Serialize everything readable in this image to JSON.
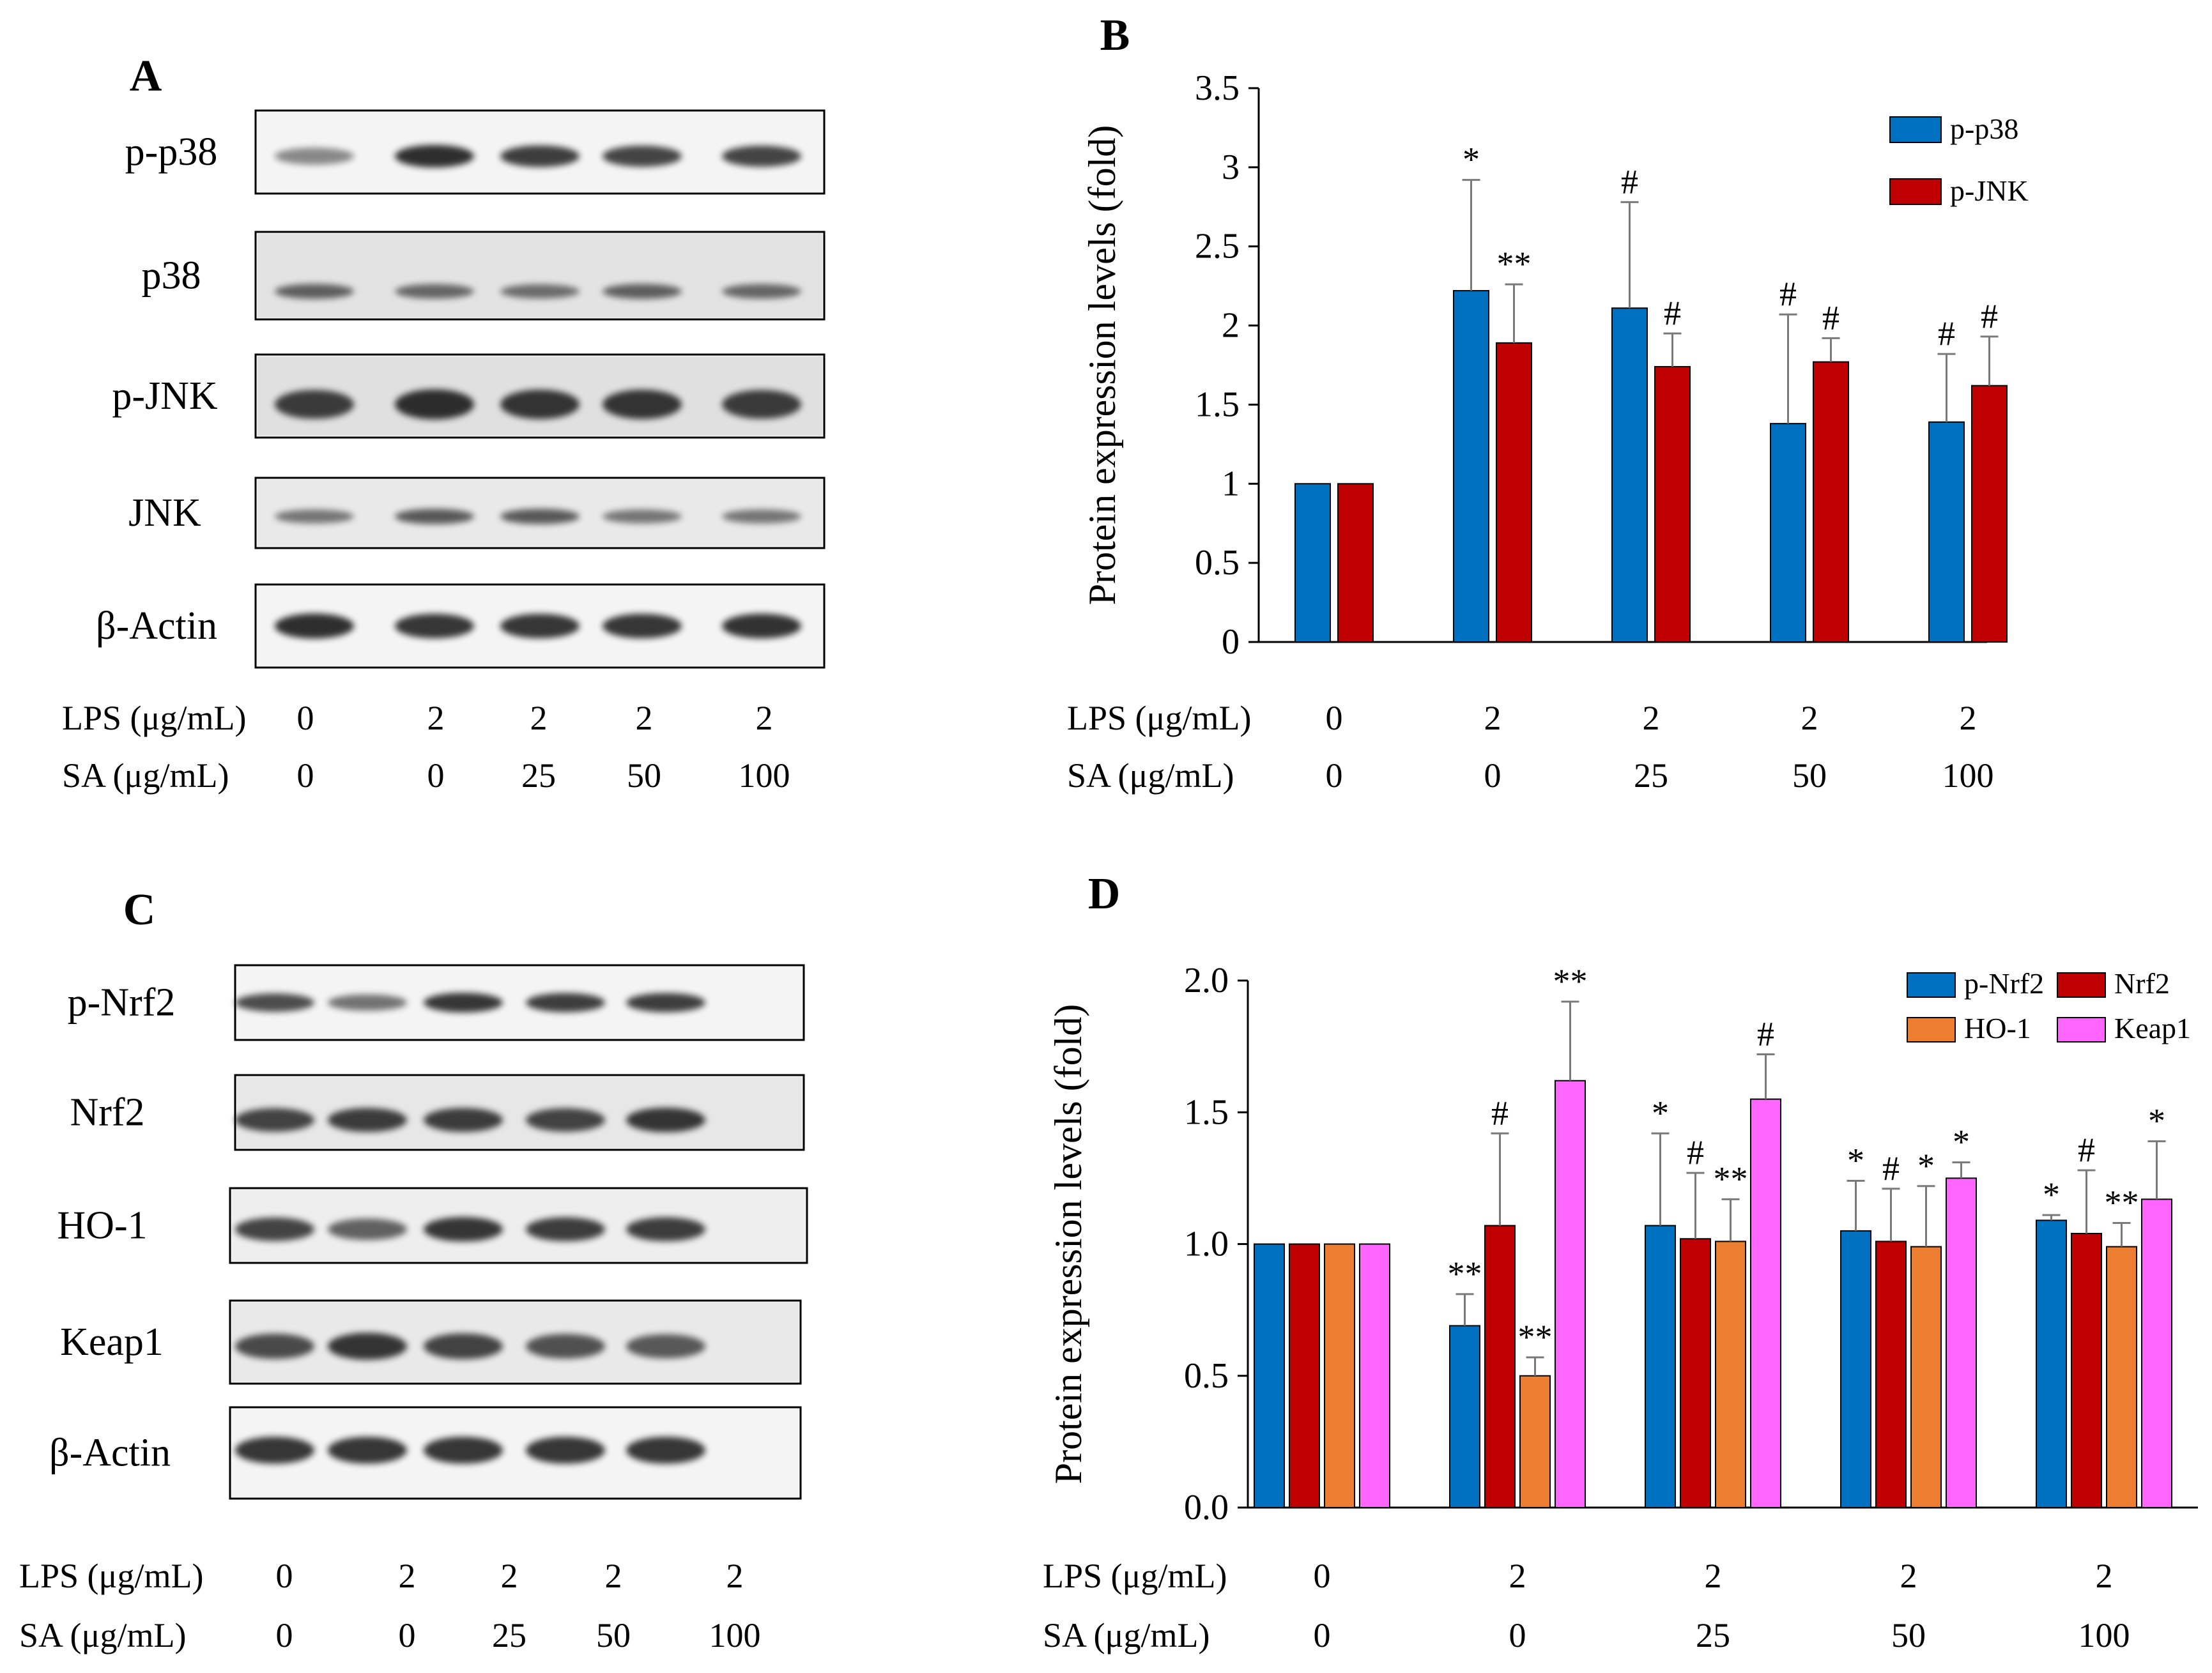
{
  "colors": {
    "blue": "#0070C0",
    "red": "#C00000",
    "orange": "#ED7D31",
    "pink": "#FF66FF",
    "axis": "#000000",
    "blot_band": "#1c1c1c",
    "blot_bg": "#f4f4f4",
    "error_bar": "#7a7a7a"
  },
  "panels": {
    "A": {
      "label": "A",
      "blot_rows": [
        "p-p38",
        "p38",
        "p-JNK",
        "JNK",
        "β-Actin"
      ],
      "lps_label": "LPS (μg/mL)",
      "sa_label": "SA (μg/mL)",
      "lps_values": [
        "0",
        "2",
        "2",
        "2",
        "2"
      ],
      "sa_values": [
        "0",
        "0",
        "25",
        "50",
        "100"
      ]
    },
    "C": {
      "label": "C",
      "blot_rows": [
        "p-Nrf2",
        "Nrf2",
        "HO-1",
        "Keap1",
        "β-Actin"
      ],
      "lps_label": "LPS (μg/mL)",
      "sa_label": "SA (μg/mL)",
      "lps_values": [
        "0",
        "2",
        "2",
        "2",
        "2"
      ],
      "sa_values": [
        "0",
        "0",
        "25",
        "50",
        "100"
      ]
    }
  },
  "chart_data": [
    {
      "panel": "B",
      "type": "bar",
      "ylabel": "Protein expression levels (fold)",
      "ylim": [
        0,
        3.5
      ],
      "yticks": [
        "0",
        "0.5",
        "1",
        "1.5",
        "2",
        "2.5",
        "3",
        "3.5"
      ],
      "legend_position": "top-right",
      "lps_label": "LPS (μg/mL)",
      "sa_label": "SA (μg/mL)",
      "categories_lps": [
        "0",
        "2",
        "2",
        "2",
        "2"
      ],
      "categories_sa": [
        "0",
        "0",
        "25",
        "50",
        "100"
      ],
      "series": [
        {
          "name": "p-p38",
          "color": "#0070C0",
          "values": [
            1.0,
            2.22,
            2.11,
            1.38,
            1.39
          ],
          "errors": [
            0,
            0.7,
            0.67,
            0.69,
            0.43
          ],
          "marks": [
            "",
            "*",
            "#",
            "#",
            "#"
          ]
        },
        {
          "name": "p-JNK",
          "color": "#C00000",
          "values": [
            1.0,
            1.89,
            1.74,
            1.77,
            1.62
          ],
          "errors": [
            0,
            0.37,
            0.21,
            0.15,
            0.31
          ],
          "marks": [
            "",
            "**",
            "#",
            "#",
            "#"
          ]
        }
      ]
    },
    {
      "panel": "D",
      "type": "bar",
      "ylabel": "Protein expression levels (fold)",
      "ylim": [
        0,
        2.0
      ],
      "yticks": [
        "0.0",
        "0.5",
        "1.0",
        "1.5",
        "2.0"
      ],
      "legend_position": "top-right",
      "lps_label": "LPS (μg/mL)",
      "sa_label": "SA (μg/mL)",
      "categories_lps": [
        "0",
        "2",
        "2",
        "2",
        "2"
      ],
      "categories_sa": [
        "0",
        "0",
        "25",
        "50",
        "100"
      ],
      "series": [
        {
          "name": "p-Nrf2",
          "color": "#0070C0",
          "values": [
            1.0,
            0.69,
            1.07,
            1.05,
            1.09
          ],
          "errors": [
            0,
            0.12,
            0.35,
            0.19,
            0.02
          ],
          "marks": [
            "",
            "**",
            "*",
            "*",
            "*"
          ]
        },
        {
          "name": "Nrf2",
          "color": "#C00000",
          "values": [
            1.0,
            1.07,
            1.02,
            1.01,
            1.04
          ],
          "errors": [
            0,
            0.35,
            0.25,
            0.2,
            0.24
          ],
          "marks": [
            "",
            "#",
            "#",
            "#",
            "#"
          ]
        },
        {
          "name": "HO-1",
          "color": "#ED7D31",
          "values": [
            1.0,
            0.5,
            1.01,
            0.99,
            0.99
          ],
          "errors": [
            0,
            0.07,
            0.16,
            0.23,
            0.09
          ],
          "marks": [
            "",
            "**",
            "**",
            "*",
            "**"
          ]
        },
        {
          "name": "Keap1",
          "color": "#FF66FF",
          "values": [
            1.0,
            1.62,
            1.55,
            1.25,
            1.17
          ],
          "errors": [
            0,
            0.3,
            0.17,
            0.06,
            0.22
          ],
          "marks": [
            "",
            "**",
            "#",
            "*",
            "*"
          ]
        }
      ]
    }
  ]
}
